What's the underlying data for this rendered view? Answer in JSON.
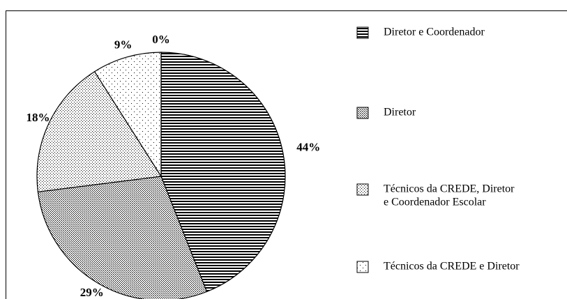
{
  "chart_data": {
    "type": "pie",
    "categories": [
      "Diretor e Coordenador",
      "Diretor",
      [
        "Técnicos da CREDE, Diretor",
        "e Coordenador Escolar"
      ],
      "Técnicos da CREDE e Diretor",
      null
    ],
    "values": [
      44,
      29,
      18,
      9,
      0
    ],
    "value_labels": [
      "44%",
      "29%",
      "18%",
      "9%",
      "0%"
    ]
  }
}
